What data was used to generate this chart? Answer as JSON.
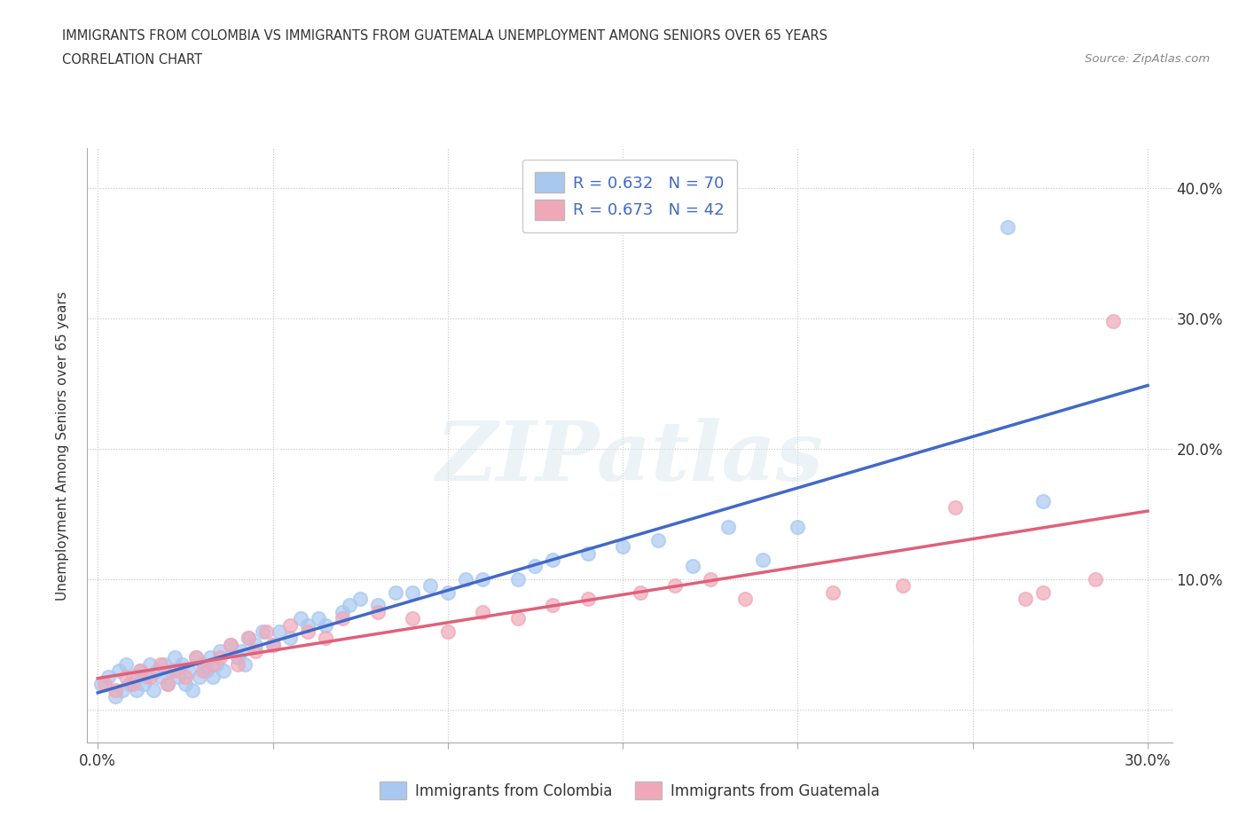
{
  "title_line1": "IMMIGRANTS FROM COLOMBIA VS IMMIGRANTS FROM GUATEMALA UNEMPLOYMENT AMONG SENIORS OVER 65 YEARS",
  "title_line2": "CORRELATION CHART",
  "source": "Source: ZipAtlas.com",
  "ylabel": "Unemployment Among Seniors over 65 years",
  "xlim_min": -0.003,
  "xlim_max": 0.307,
  "ylim_min": -0.025,
  "ylim_max": 0.43,
  "xtick_positions": [
    0.0,
    0.05,
    0.1,
    0.15,
    0.2,
    0.25,
    0.3
  ],
  "xtick_labels": [
    "0.0%",
    "",
    "",
    "",
    "",
    "",
    "30.0%"
  ],
  "ytick_positions": [
    0.0,
    0.1,
    0.2,
    0.3,
    0.4
  ],
  "ytick_labels_right": [
    "",
    "10.0%",
    "20.0%",
    "30.0%",
    "40.0%"
  ],
  "colombia_color": "#a8c8f0",
  "guatemala_color": "#f0a8b8",
  "colombia_line_color": "#4169c8",
  "guatemala_line_color": "#e0607a",
  "colombia_R": 0.632,
  "colombia_N": 70,
  "guatemala_R": 0.673,
  "guatemala_N": 42,
  "legend_text_color": "#4169c8",
  "watermark_text": "ZIPatlas",
  "colombia_x": [
    0.001,
    0.003,
    0.005,
    0.006,
    0.007,
    0.008,
    0.009,
    0.01,
    0.011,
    0.012,
    0.013,
    0.014,
    0.015,
    0.016,
    0.017,
    0.018,
    0.019,
    0.02,
    0.021,
    0.022,
    0.023,
    0.024,
    0.025,
    0.026,
    0.027,
    0.028,
    0.029,
    0.03,
    0.031,
    0.032,
    0.033,
    0.034,
    0.035,
    0.036,
    0.038,
    0.04,
    0.041,
    0.042,
    0.043,
    0.045,
    0.047,
    0.05,
    0.052,
    0.055,
    0.058,
    0.06,
    0.063,
    0.065,
    0.07,
    0.072,
    0.075,
    0.08,
    0.085,
    0.09,
    0.095,
    0.1,
    0.105,
    0.11,
    0.12,
    0.125,
    0.13,
    0.14,
    0.15,
    0.16,
    0.17,
    0.18,
    0.19,
    0.2,
    0.26,
    0.27
  ],
  "colombia_y": [
    0.02,
    0.025,
    0.01,
    0.03,
    0.015,
    0.035,
    0.02,
    0.025,
    0.015,
    0.03,
    0.02,
    0.025,
    0.035,
    0.015,
    0.03,
    0.025,
    0.035,
    0.02,
    0.03,
    0.04,
    0.025,
    0.035,
    0.02,
    0.03,
    0.015,
    0.04,
    0.025,
    0.035,
    0.03,
    0.04,
    0.025,
    0.035,
    0.045,
    0.03,
    0.05,
    0.04,
    0.045,
    0.035,
    0.055,
    0.05,
    0.06,
    0.05,
    0.06,
    0.055,
    0.07,
    0.065,
    0.07,
    0.065,
    0.075,
    0.08,
    0.085,
    0.08,
    0.09,
    0.09,
    0.095,
    0.09,
    0.1,
    0.1,
    0.1,
    0.11,
    0.115,
    0.12,
    0.125,
    0.13,
    0.11,
    0.14,
    0.115,
    0.14,
    0.37,
    0.16
  ],
  "guatemala_x": [
    0.002,
    0.005,
    0.008,
    0.01,
    0.012,
    0.015,
    0.018,
    0.02,
    0.022,
    0.025,
    0.028,
    0.03,
    0.033,
    0.035,
    0.038,
    0.04,
    0.043,
    0.045,
    0.048,
    0.05,
    0.055,
    0.06,
    0.065,
    0.07,
    0.08,
    0.09,
    0.1,
    0.11,
    0.12,
    0.13,
    0.14,
    0.155,
    0.165,
    0.175,
    0.185,
    0.21,
    0.23,
    0.245,
    0.265,
    0.27,
    0.285,
    0.29
  ],
  "guatemala_y": [
    0.02,
    0.015,
    0.025,
    0.02,
    0.03,
    0.025,
    0.035,
    0.02,
    0.03,
    0.025,
    0.04,
    0.03,
    0.035,
    0.04,
    0.05,
    0.035,
    0.055,
    0.045,
    0.06,
    0.05,
    0.065,
    0.06,
    0.055,
    0.07,
    0.075,
    0.07,
    0.06,
    0.075,
    0.07,
    0.08,
    0.085,
    0.09,
    0.095,
    0.1,
    0.085,
    0.09,
    0.095,
    0.155,
    0.085,
    0.09,
    0.1,
    0.298
  ]
}
